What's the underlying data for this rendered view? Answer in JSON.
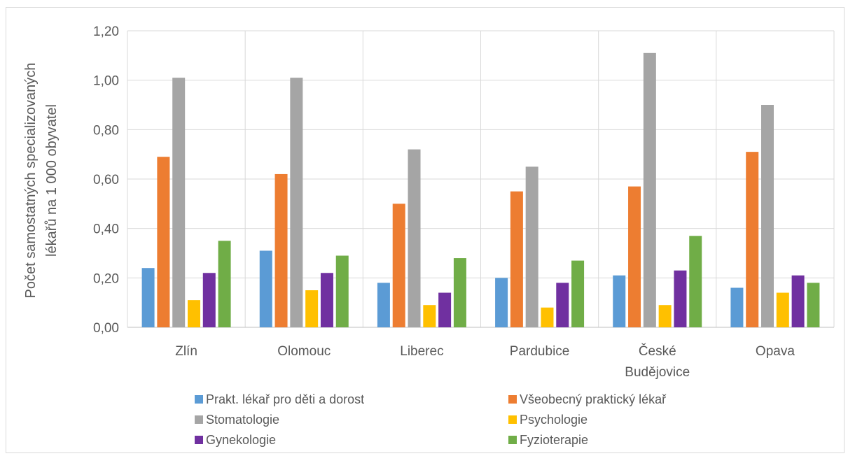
{
  "chart_data": {
    "type": "bar",
    "title": "",
    "xlabel": "",
    "ylabel_lines": [
      "Počet samostatných specializovaných",
      "lékařů na 1 000 obyvatel"
    ],
    "ylim": [
      0,
      1.2
    ],
    "yticks": [
      0,
      0.2,
      0.4,
      0.6,
      0.8,
      1.0,
      1.2
    ],
    "ytick_labels": [
      "0,00",
      "0,20",
      "0,40",
      "0,60",
      "0,80",
      "1,00",
      "1,20"
    ],
    "grid": "vertical separators and top/bottom lines",
    "legend_position": "bottom",
    "categories": [
      [
        "Zlín"
      ],
      [
        "Olomouc"
      ],
      [
        "Liberec"
      ],
      [
        "Pardubice"
      ],
      [
        "České",
        "Budějovice"
      ],
      [
        "Opava"
      ]
    ],
    "series": [
      {
        "name": "Prakt. lékař pro děti a dorost",
        "color": "#5b9bd5",
        "values": [
          0.24,
          0.31,
          0.18,
          0.2,
          0.21,
          0.16
        ]
      },
      {
        "name": "Všeobecný praktický lékař",
        "color": "#ed7d31",
        "values": [
          0.69,
          0.62,
          0.5,
          0.55,
          0.57,
          0.71
        ]
      },
      {
        "name": "Stomatologie",
        "color": "#a5a5a5",
        "values": [
          1.01,
          1.01,
          0.72,
          0.65,
          1.11,
          0.9
        ]
      },
      {
        "name": "Psychologie",
        "color": "#ffc000",
        "values": [
          0.11,
          0.15,
          0.09,
          0.08,
          0.09,
          0.14
        ]
      },
      {
        "name": "Gynekologie",
        "color": "#7030a0",
        "values": [
          0.22,
          0.22,
          0.14,
          0.18,
          0.23,
          0.21
        ]
      },
      {
        "name": "Fyzioterapie",
        "color": "#70ad47",
        "values": [
          0.35,
          0.29,
          0.28,
          0.27,
          0.37,
          0.18
        ]
      }
    ]
  }
}
